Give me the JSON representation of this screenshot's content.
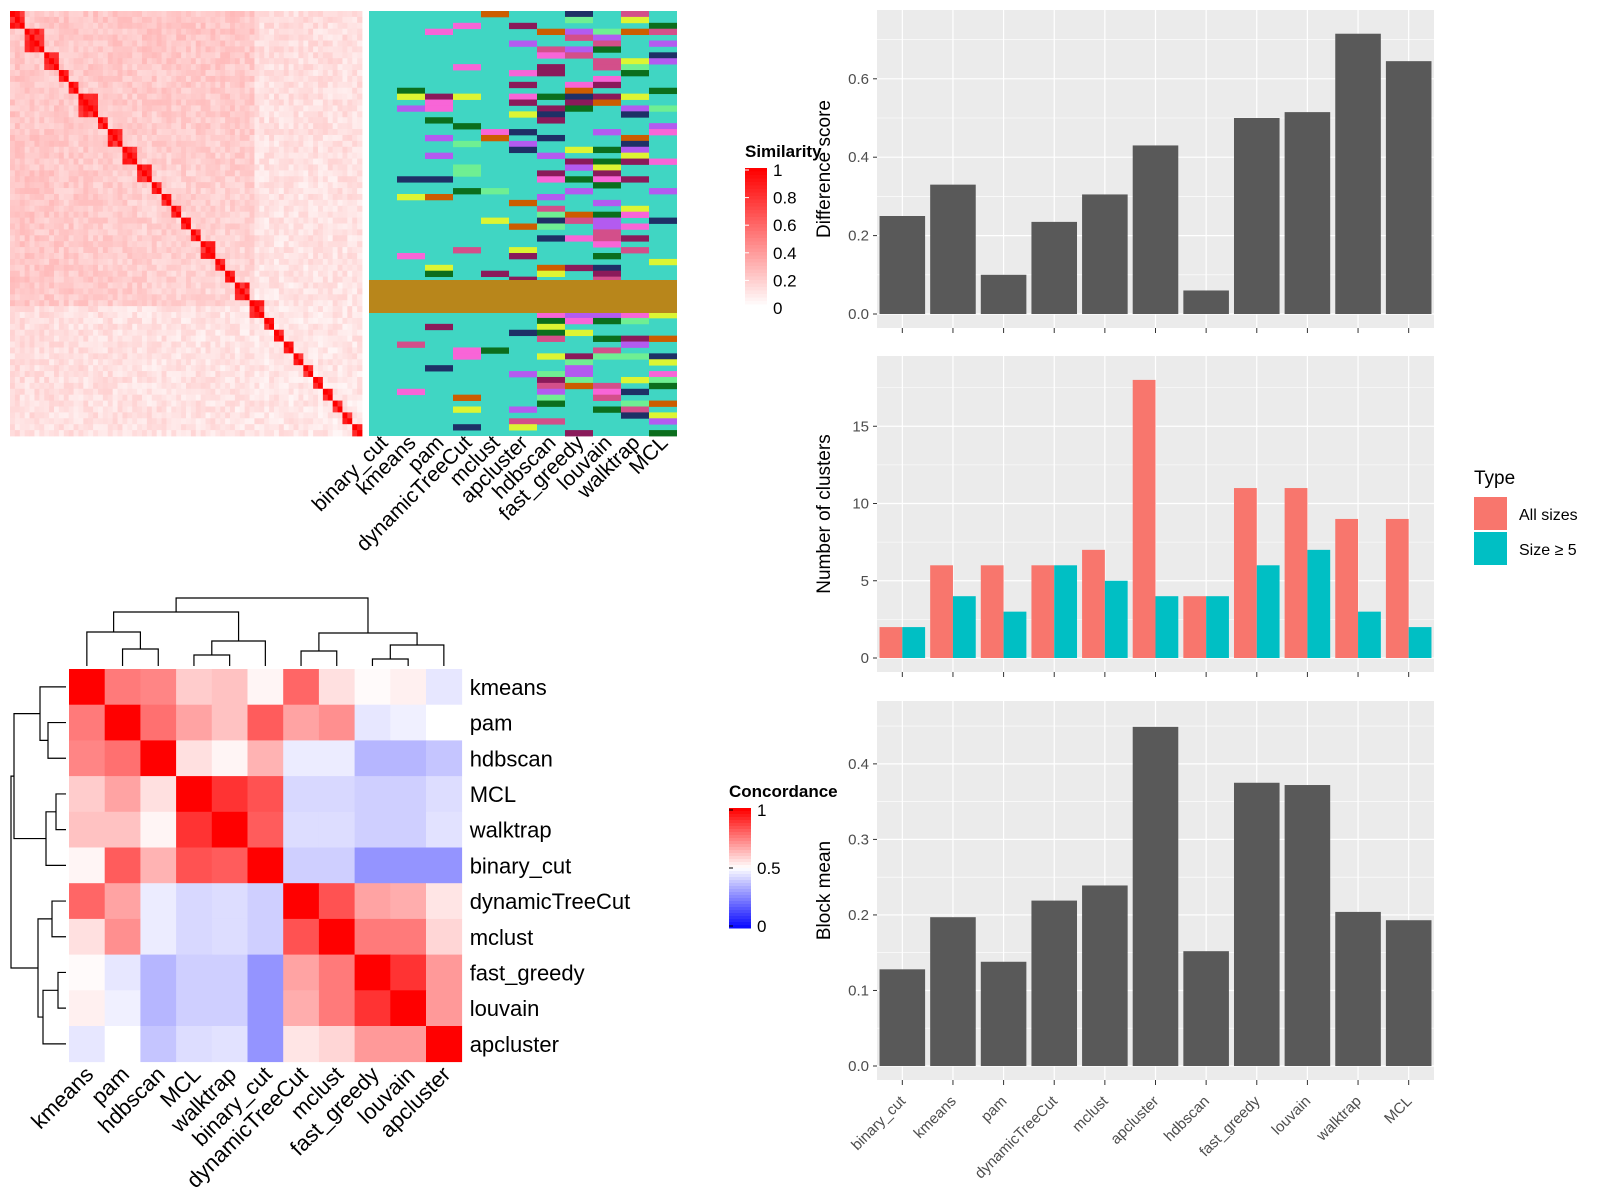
{
  "colors": {
    "panel_bg": "#EBEBEB",
    "grid": "#FFFFFF",
    "bar_dark": "#595959",
    "all_sizes": "#F8766D",
    "size_ge5": "#00BFC4",
    "heat_high": "#FF0000",
    "heat_mid": "#FFFFFF",
    "heat_low": "#0000FF",
    "teal_bg": "#40D6C3",
    "gold_band": "#B8861B"
  },
  "chart_data": [
    {
      "id": "similarity",
      "type": "heatmap",
      "title": "",
      "legend_title": "Similarity",
      "legend_ticks": [
        "1",
        "0.8",
        "0.6",
        "0.4",
        "0.2",
        "0"
      ],
      "n": 72,
      "tick_labels": [],
      "class_columns": [
        "binary_cut",
        "kmeans",
        "pam",
        "dynamicTreeCut",
        "mclust",
        "apcluster",
        "hdbscan",
        "fast_greedy",
        "louvain",
        "walktrap",
        "MCL"
      ]
    },
    {
      "id": "concordance",
      "type": "heatmap",
      "title": "",
      "legend_title": "Concordance",
      "legend_ticks": [
        "1",
        "0.5",
        "0"
      ],
      "rows": [
        "kmeans",
        "pam",
        "hdbscan",
        "MCL",
        "walktrap",
        "binary_cut",
        "dynamicTreeCut",
        "mclust",
        "fast_greedy",
        "louvain",
        "apcluster"
      ],
      "cols": [
        "kmeans",
        "pam",
        "hdbscan",
        "MCL",
        "walktrap",
        "binary_cut",
        "dynamicTreeCut",
        "mclust",
        "fast_greedy",
        "louvain",
        "apcluster"
      ],
      "values": [
        [
          1.0,
          0.76,
          0.74,
          0.6,
          0.62,
          0.52,
          0.8,
          0.56,
          0.51,
          0.53,
          0.45
        ],
        [
          0.76,
          1.0,
          0.78,
          0.68,
          0.62,
          0.82,
          0.68,
          0.72,
          0.45,
          0.47,
          0.5
        ],
        [
          0.74,
          0.78,
          1.0,
          0.56,
          0.52,
          0.65,
          0.46,
          0.46,
          0.35,
          0.35,
          0.38
        ],
        [
          0.6,
          0.68,
          0.56,
          1.0,
          0.9,
          0.84,
          0.42,
          0.42,
          0.4,
          0.4,
          0.43
        ],
        [
          0.62,
          0.62,
          0.52,
          0.9,
          1.0,
          0.82,
          0.43,
          0.43,
          0.4,
          0.4,
          0.44
        ],
        [
          0.52,
          0.82,
          0.65,
          0.84,
          0.82,
          1.0,
          0.4,
          0.4,
          0.28,
          0.28,
          0.28
        ],
        [
          0.8,
          0.68,
          0.46,
          0.42,
          0.43,
          0.4,
          1.0,
          0.84,
          0.68,
          0.66,
          0.55
        ],
        [
          0.56,
          0.72,
          0.46,
          0.42,
          0.43,
          0.4,
          0.84,
          1.0,
          0.76,
          0.76,
          0.58
        ],
        [
          0.51,
          0.45,
          0.35,
          0.4,
          0.4,
          0.28,
          0.68,
          0.76,
          1.0,
          0.9,
          0.7
        ],
        [
          0.53,
          0.47,
          0.35,
          0.4,
          0.4,
          0.28,
          0.66,
          0.76,
          0.9,
          1.0,
          0.7
        ],
        [
          0.45,
          0.5,
          0.38,
          0.43,
          0.44,
          0.28,
          0.55,
          0.58,
          0.7,
          0.7,
          1.0
        ]
      ]
    },
    {
      "id": "difference",
      "type": "bar",
      "categories": [
        "binary_cut",
        "kmeans",
        "pam",
        "dynamicTreeCut",
        "mclust",
        "apcluster",
        "hdbscan",
        "fast_greedy",
        "louvain",
        "walktrap",
        "MCL"
      ],
      "values": [
        0.25,
        0.33,
        0.1,
        0.235,
        0.305,
        0.43,
        0.06,
        0.5,
        0.515,
        0.715,
        0.645
      ],
      "xlabel": "",
      "ylabel": "Difference score",
      "ylim": [
        0,
        0.75
      ],
      "yticks": [
        "0.0",
        "0.2",
        "0.4",
        "0.6"
      ],
      "grid": true
    },
    {
      "id": "clusters",
      "type": "bar",
      "categories": [
        "binary_cut",
        "kmeans",
        "pam",
        "dynamicTreeCut",
        "mclust",
        "apcluster",
        "hdbscan",
        "fast_greedy",
        "louvain",
        "walktrap",
        "MCL"
      ],
      "series": [
        {
          "name": "All sizes",
          "values": [
            2,
            6,
            6,
            6,
            7,
            18,
            4,
            11,
            11,
            9,
            9
          ]
        },
        {
          "name": "Size ≥ 5",
          "values": [
            2,
            4,
            3,
            6,
            5,
            4,
            4,
            6,
            7,
            3,
            2
          ]
        }
      ],
      "xlabel": "",
      "ylabel": "Number of clusters",
      "ylim": [
        0,
        18.9
      ],
      "yticks": [
        "0",
        "5",
        "10",
        "15"
      ],
      "legend_title": "Type",
      "legend_position": "right",
      "grid": true
    },
    {
      "id": "blockmean",
      "type": "bar",
      "categories": [
        "binary_cut",
        "kmeans",
        "pam",
        "dynamicTreeCut",
        "mclust",
        "apcluster",
        "hdbscan",
        "fast_greedy",
        "louvain",
        "walktrap",
        "MCL"
      ],
      "values": [
        0.128,
        0.197,
        0.138,
        0.219,
        0.239,
        0.449,
        0.152,
        0.375,
        0.372,
        0.204,
        0.193
      ],
      "xlabel": "",
      "ylabel": "Block mean",
      "ylim": [
        0,
        0.47
      ],
      "yticks": [
        "0.0",
        "0.1",
        "0.2",
        "0.3",
        "0.4"
      ],
      "grid": true
    }
  ]
}
